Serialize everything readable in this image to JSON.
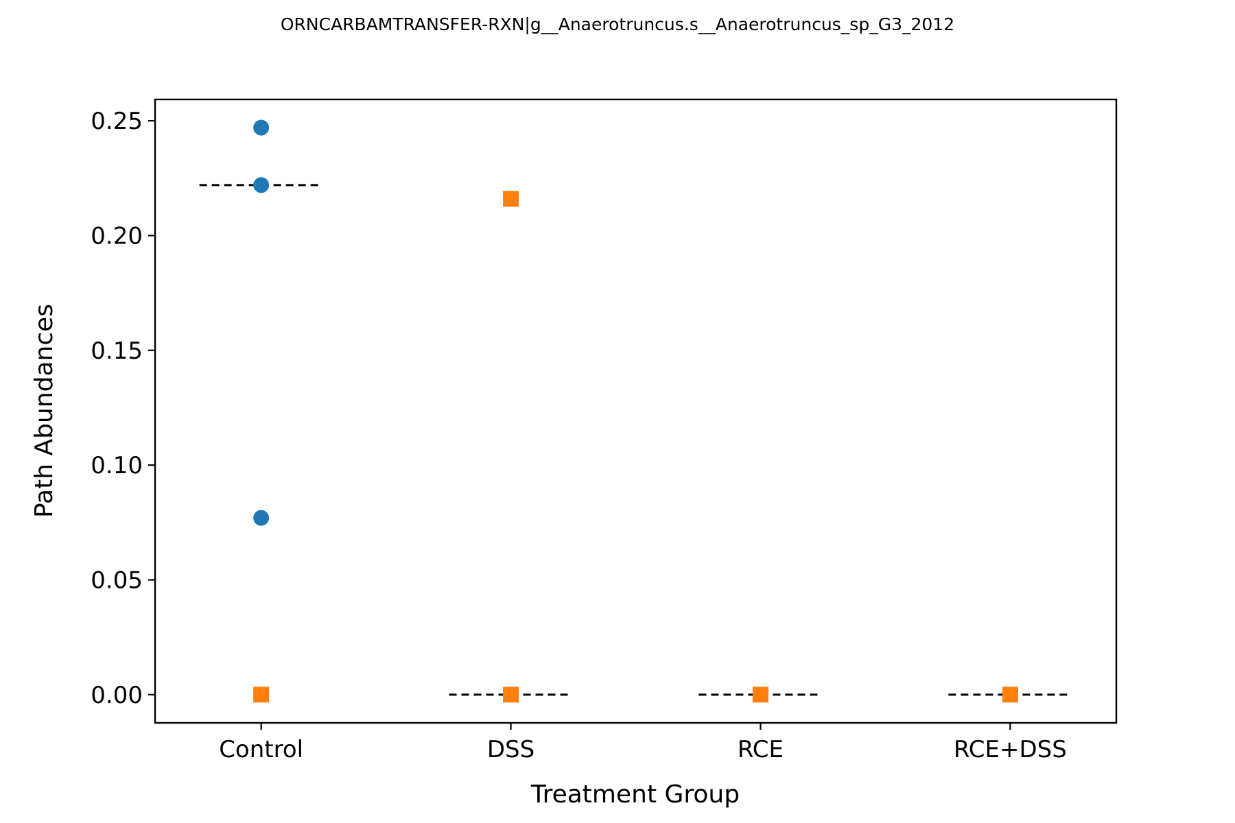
{
  "chart_data": {
    "type": "scatter",
    "title": "ORNCARBAMTRANSFER-RXN|g__Anaerotruncus.s__Anaerotruncus_sp_G3_2012",
    "xlabel": "Treatment Group",
    "ylabel": "Path Abundances",
    "categories": [
      "Control",
      "DSS",
      "RCE",
      "RCE+DSS"
    ],
    "ylim": [
      -0.0123,
      0.2593
    ],
    "yticks": [
      0.0,
      0.05,
      0.1,
      0.15,
      0.2,
      0.25
    ],
    "ytick_labels": [
      "0.00",
      "0.05",
      "0.10",
      "0.15",
      "0.20",
      "0.25"
    ],
    "grid": false,
    "legend": "none",
    "series": [
      {
        "marker": "circle",
        "color": "#1f77b4",
        "points": [
          {
            "category": "Control",
            "y": 0.247
          },
          {
            "category": "Control",
            "y": 0.222
          },
          {
            "category": "Control",
            "y": 0.077
          }
        ]
      },
      {
        "marker": "square",
        "color": "#ff7f0e",
        "points": [
          {
            "category": "Control",
            "y": 0.0
          },
          {
            "category": "DSS",
            "y": 0.216
          },
          {
            "category": "DSS",
            "y": 0.0
          },
          {
            "category": "RCE",
            "y": 0.0
          },
          {
            "category": "RCE+DSS",
            "y": 0.0
          }
        ]
      }
    ],
    "median_lines": [
      {
        "category": "Control",
        "y": 0.222
      },
      {
        "category": "DSS",
        "y": 0.0
      },
      {
        "category": "RCE",
        "y": 0.0
      },
      {
        "category": "RCE+DSS",
        "y": 0.0
      }
    ],
    "median_line_color": "#000000"
  }
}
